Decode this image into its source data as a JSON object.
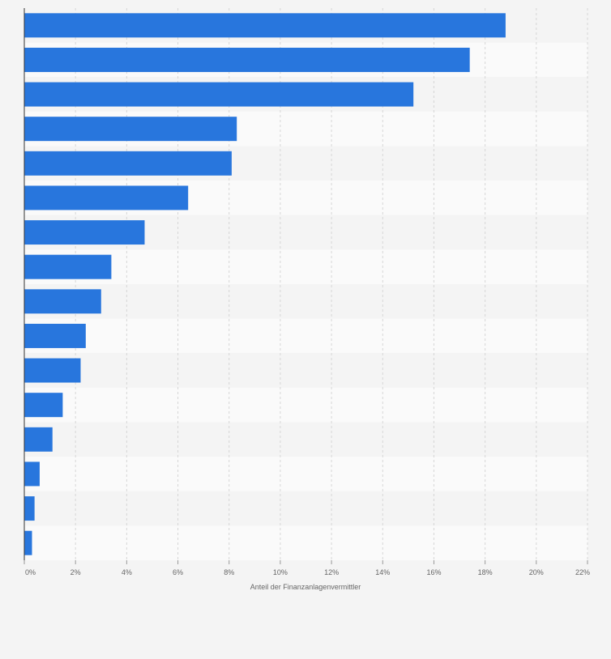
{
  "chart_data": {
    "type": "bar",
    "orientation": "horizontal",
    "title": "",
    "xlabel": "Anteil der Finanzanlagenvermittler",
    "ylabel": "",
    "categories": [
      "",
      "",
      "",
      "",
      "",
      "",
      "",
      "",
      "",
      "",
      "",
      "",
      "",
      "",
      "",
      ""
    ],
    "values": [
      18.8,
      17.4,
      15.2,
      8.3,
      8.1,
      6.4,
      4.7,
      3.4,
      3.0,
      2.4,
      2.2,
      1.5,
      1.1,
      0.6,
      0.4,
      0.3
    ],
    "xlim": [
      0,
      22
    ],
    "xticks": [
      {
        "value": 0,
        "label": "0%"
      },
      {
        "value": 2,
        "label": "2%"
      },
      {
        "value": 4,
        "label": "4%"
      },
      {
        "value": 6,
        "label": "6%"
      },
      {
        "value": 8,
        "label": "8%"
      },
      {
        "value": 10,
        "label": "10%"
      },
      {
        "value": 12,
        "label": "12%"
      },
      {
        "value": 14,
        "label": "14%"
      },
      {
        "value": 16,
        "label": "16%"
      },
      {
        "value": 18,
        "label": "18%"
      },
      {
        "value": 20,
        "label": "20%"
      },
      {
        "value": 22,
        "label": "22%"
      }
    ],
    "grid": true,
    "legend": "none"
  },
  "colors": {
    "bar": "#2876dd",
    "band_dark": "#f4f4f4",
    "band_light": "#fafafa",
    "grid": "#d6d6d6",
    "axis": "#333333",
    "tick_text": "#666666"
  }
}
